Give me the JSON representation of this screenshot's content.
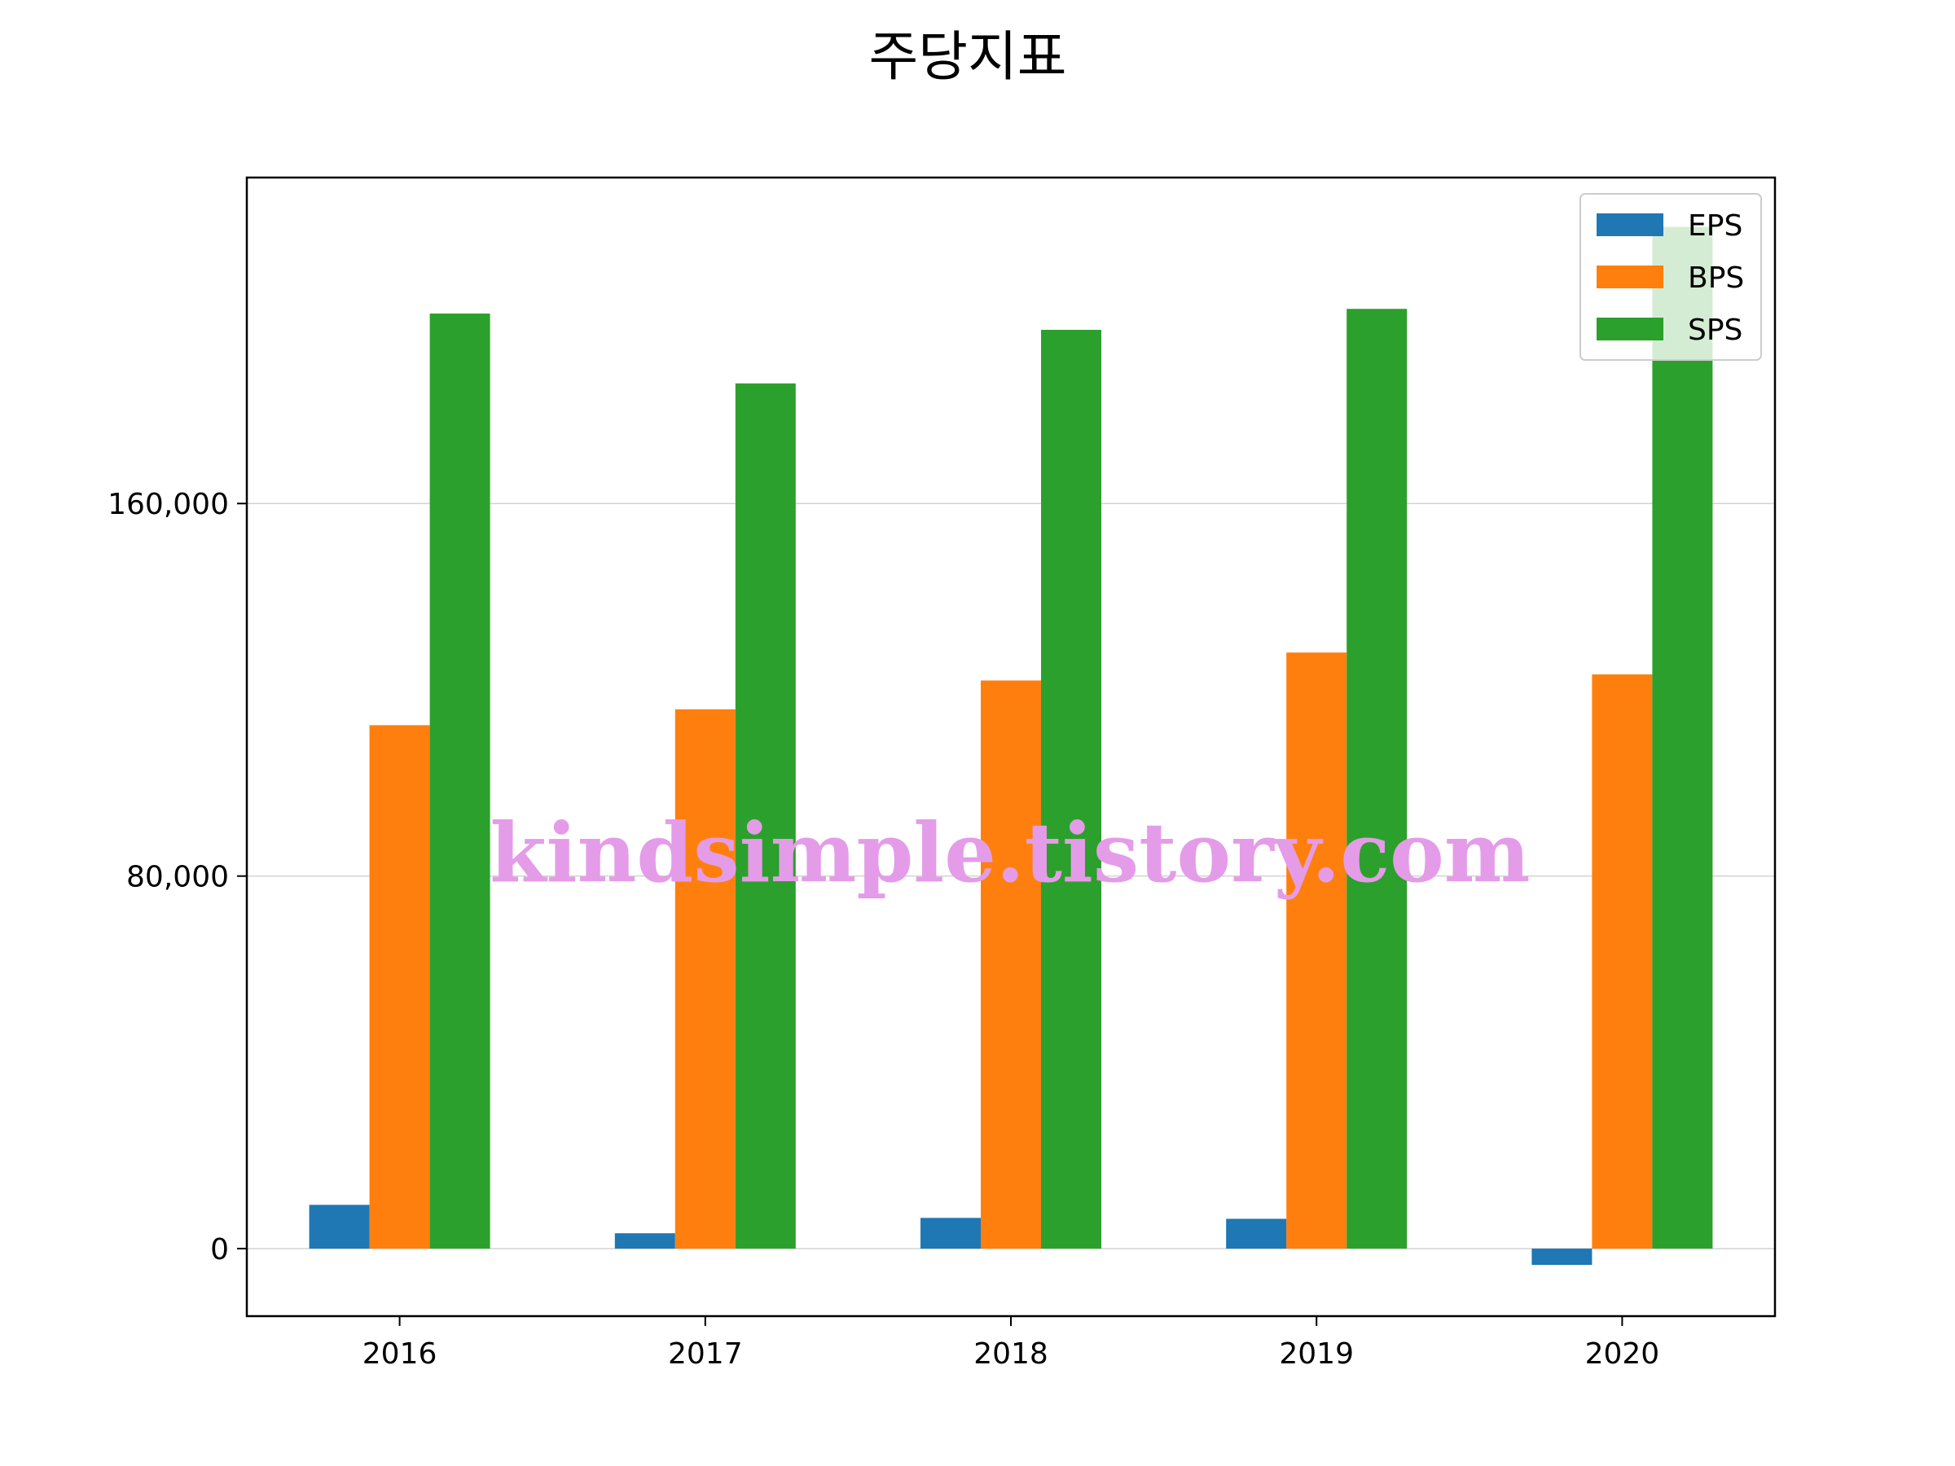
{
  "chart_data": {
    "type": "bar",
    "title": "주당지표",
    "categories": [
      "2016",
      "2017",
      "2018",
      "2019",
      "2020"
    ],
    "series": [
      {
        "name": "EPS",
        "color": "#1f77b4",
        "values": [
          9400,
          3300,
          6600,
          6400,
          -3500
        ]
      },
      {
        "name": "BPS",
        "color": "#ff7f0e",
        "values": [
          112400,
          115800,
          122000,
          128000,
          123300
        ]
      },
      {
        "name": "SPS",
        "color": "#2ca02c",
        "values": [
          200800,
          185800,
          197300,
          201800,
          219400
        ]
      }
    ],
    "yticks": [
      0,
      80000,
      160000
    ],
    "ytick_labels": [
      "0",
      "80,000",
      "160,000"
    ],
    "ylim": [
      -14500,
      230000
    ],
    "grid": "horizontal",
    "legend": "top-right"
  },
  "watermark": "kindsimple.tistory.com"
}
